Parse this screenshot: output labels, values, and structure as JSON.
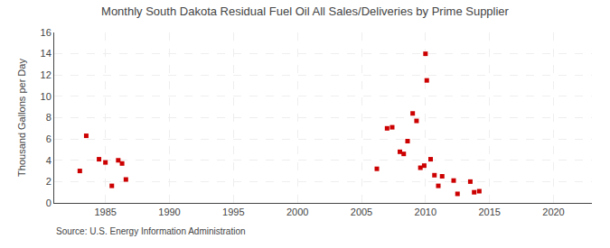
{
  "chart_data": {
    "type": "scatter",
    "title": "Monthly South Dakota Residual Fuel Oil All Sales/Deliveries by Prime Supplier",
    "ylabel": "Thousand Gallons per Day",
    "annotations": [
      "Source: U.S. Energy Information Administration"
    ],
    "color": "#cc0000",
    "marker": "square",
    "grid": true,
    "xlim": [
      1981,
      2023
    ],
    "ylim": [
      0,
      16
    ],
    "xticks": [
      1985,
      1990,
      1995,
      2000,
      2005,
      2010,
      2015,
      2020
    ],
    "yticks": [
      0,
      2,
      4,
      6,
      8,
      10,
      12,
      14,
      16
    ],
    "x": [
      1983.0,
      1983.5,
      1984.5,
      1985.0,
      1985.5,
      1986.0,
      1986.3,
      1986.6,
      2006.2,
      2007.0,
      2007.4,
      2008.0,
      2008.3,
      2008.6,
      2009.0,
      2009.3,
      2009.6,
      2009.9,
      2010.0,
      2010.1,
      2010.4,
      2010.7,
      2011.0,
      2011.3,
      2012.2,
      2012.5,
      2013.5,
      2013.8,
      2014.2
    ],
    "values": [
      3.0,
      6.3,
      4.1,
      3.8,
      1.6,
      4.0,
      3.7,
      2.2,
      3.2,
      7.0,
      7.1,
      4.8,
      4.6,
      5.8,
      8.4,
      7.7,
      3.3,
      3.5,
      14.0,
      11.5,
      4.1,
      2.6,
      1.6,
      2.5,
      2.1,
      0.85,
      2.0,
      1.0,
      1.1
    ]
  }
}
